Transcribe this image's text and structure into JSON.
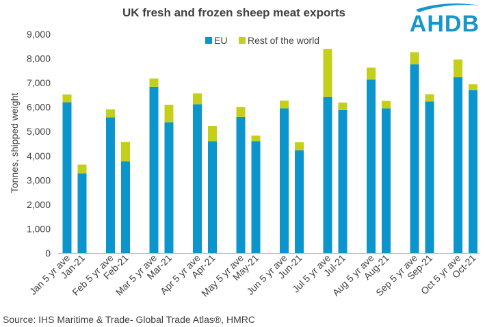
{
  "logo": {
    "text": "AHDB",
    "color": "#1896cc"
  },
  "source": "Source: IHS Maritime & Trade- Global Trade Atlas®, HMRC",
  "chart_data": {
    "type": "bar",
    "stacked": true,
    "title": "UK fresh and frozen sheep meat exports",
    "xlabel": "",
    "ylabel": "Tonnes, shipped weight",
    "ylim": [
      0,
      9000
    ],
    "yticks": [
      0,
      1000,
      2000,
      3000,
      4000,
      5000,
      6000,
      7000,
      8000,
      9000
    ],
    "ytick_labels": [
      "0",
      "1,000",
      "2,000",
      "3,000",
      "4,000",
      "5,000",
      "6,000",
      "7,000",
      "8,000",
      "9,000"
    ],
    "grid": false,
    "legend_position": "top-center",
    "categories": [
      "Jan 5 yr ave",
      "Jan-21",
      "Feb 5 yr ave",
      "Feb-21",
      "Mar 5 yr ave",
      "Mar-21",
      "Apr 5 yr ave",
      "Apr-21",
      "May 5 yr ave",
      "May-21",
      "Jun 5 yr ave",
      "Jun-21",
      "Jul 5 yr ave",
      "Jul-21",
      "Aug 5 yr ave",
      "Aug-21",
      "Sep 5 yr ave",
      "Sep-21",
      "Oct 5 yr ave",
      "Oct-21"
    ],
    "series": [
      {
        "name": "EU",
        "color": "#0c95cd",
        "values": [
          6200,
          3280,
          5580,
          3770,
          6840,
          5380,
          6120,
          4600,
          5600,
          4600,
          5950,
          4230,
          6420,
          5880,
          7130,
          5950,
          7760,
          6230,
          7230,
          6700
        ]
      },
      {
        "name": "Rest of the world",
        "color": "#c3cf1b",
        "values": [
          320,
          360,
          330,
          800,
          340,
          720,
          450,
          630,
          410,
          230,
          320,
          330,
          1970,
          310,
          500,
          310,
          500,
          300,
          730,
          240
        ]
      }
    ]
  }
}
